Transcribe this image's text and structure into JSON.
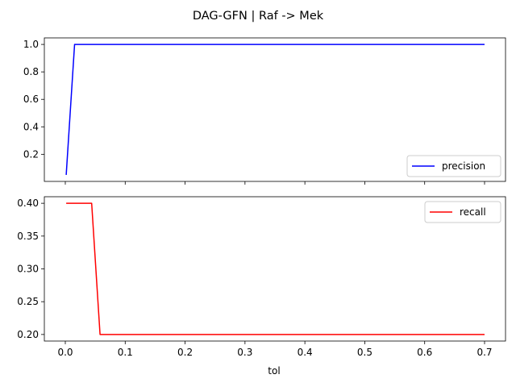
{
  "chart_data": {
    "suptitle": "DAG-GFN | Raf -> Mek",
    "xlabel": "tol",
    "x_ticks": [
      0.0,
      0.1,
      0.2,
      0.3,
      0.4,
      0.5,
      0.6,
      0.7
    ],
    "x_tick_labels": [
      "0.0",
      "0.1",
      "0.2",
      "0.3",
      "0.4",
      "0.5",
      "0.6",
      "0.7"
    ],
    "xlim": [
      -0.035,
      0.735
    ],
    "charts": [
      {
        "type": "line",
        "series": [
          {
            "name": "precision",
            "color": "#0000ff",
            "x": [
              0.0015,
              0.0155,
              0.7
            ],
            "y": [
              0.05,
              1.0,
              1.0
            ]
          }
        ],
        "ylim": [
          0.0025,
          1.0475
        ],
        "y_ticks": [
          0.2,
          0.4,
          0.6,
          0.8,
          1.0
        ],
        "y_tick_labels": [
          "0.2",
          "0.4",
          "0.6",
          "0.8",
          "1.0"
        ],
        "legend_position": "lower right",
        "show_x_tick_labels": false
      },
      {
        "type": "line",
        "series": [
          {
            "name": "recall",
            "color": "#ff0000",
            "x": [
              0.0015,
              0.044,
              0.058,
              0.7
            ],
            "y": [
              0.4,
              0.4,
              0.2,
              0.2
            ]
          }
        ],
        "ylim": [
          0.19,
          0.41
        ],
        "y_ticks": [
          0.2,
          0.25,
          0.3,
          0.35,
          0.4
        ],
        "y_tick_labels": [
          "0.20",
          "0.25",
          "0.30",
          "0.35",
          "0.40"
        ],
        "legend_position": "upper right",
        "show_x_tick_labels": true
      }
    ]
  }
}
